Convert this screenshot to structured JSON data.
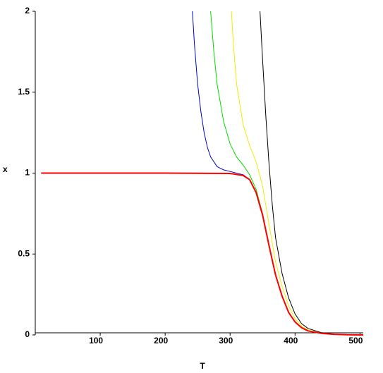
{
  "chart_data": {
    "type": "line",
    "x_label": "T",
    "y_label": "x",
    "xlim": [
      0,
      505
    ],
    "ylim": [
      0,
      2
    ],
    "xticks": [
      100,
      200,
      300,
      400,
      500
    ],
    "yticks": [
      0,
      0.5,
      1,
      1.5,
      2
    ],
    "series": [
      {
        "color": "#0000cc",
        "x": [
          242,
          245,
          250,
          255,
          260,
          265,
          270,
          280,
          290,
          300,
          320,
          330,
          340,
          350,
          360,
          370,
          380,
          390,
          400,
          410,
          420,
          440,
          460,
          480,
          505
        ],
        "values": [
          2,
          1.8,
          1.55,
          1.38,
          1.25,
          1.16,
          1.1,
          1.04,
          1.02,
          1.01,
          0.99,
          0.96,
          0.88,
          0.74,
          0.55,
          0.37,
          0.24,
          0.14,
          0.08,
          0.045,
          0.025,
          0.01,
          0.004,
          0.001,
          0
        ]
      },
      {
        "color": "#00dd00",
        "x": [
          270,
          275,
          280,
          290,
          300,
          310,
          320,
          330,
          340,
          350,
          360,
          370,
          380,
          390,
          400,
          410,
          420,
          440,
          460,
          480,
          505
        ],
        "values": [
          2,
          1.75,
          1.55,
          1.32,
          1.18,
          1.1,
          1.05,
          0.99,
          0.9,
          0.75,
          0.56,
          0.37,
          0.24,
          0.14,
          0.08,
          0.045,
          0.025,
          0.01,
          0.004,
          0.001,
          0
        ]
      },
      {
        "color": "#eeee00",
        "x": [
          302,
          305,
          310,
          320,
          330,
          340,
          350,
          360,
          370,
          380,
          390,
          400,
          410,
          420,
          440,
          460,
          480,
          505
        ],
        "values": [
          2,
          1.8,
          1.55,
          1.3,
          1.17,
          1.07,
          0.92,
          0.68,
          0.45,
          0.3,
          0.18,
          0.1,
          0.055,
          0.03,
          0.012,
          0.004,
          0.001,
          0
        ]
      },
      {
        "color": "#000000",
        "x": [
          346,
          350,
          355,
          360,
          365,
          370,
          380,
          390,
          400,
          410,
          420,
          440,
          460,
          480,
          505
        ],
        "values": [
          2,
          1.7,
          1.35,
          1.05,
          0.8,
          0.6,
          0.38,
          0.23,
          0.13,
          0.07,
          0.04,
          0.015,
          0.005,
          0.002,
          0
        ]
      },
      {
        "color": "#ff0000",
        "x": [
          9,
          100,
          200,
          300,
          320,
          330,
          340,
          350,
          360,
          370,
          380,
          390,
          400,
          410,
          420,
          440,
          460,
          480,
          505
        ],
        "values": [
          1,
          1,
          1,
          0.998,
          0.985,
          0.96,
          0.88,
          0.74,
          0.55,
          0.37,
          0.24,
          0.14,
          0.08,
          0.045,
          0.025,
          0.01,
          0.004,
          0.001,
          0
        ]
      }
    ]
  }
}
